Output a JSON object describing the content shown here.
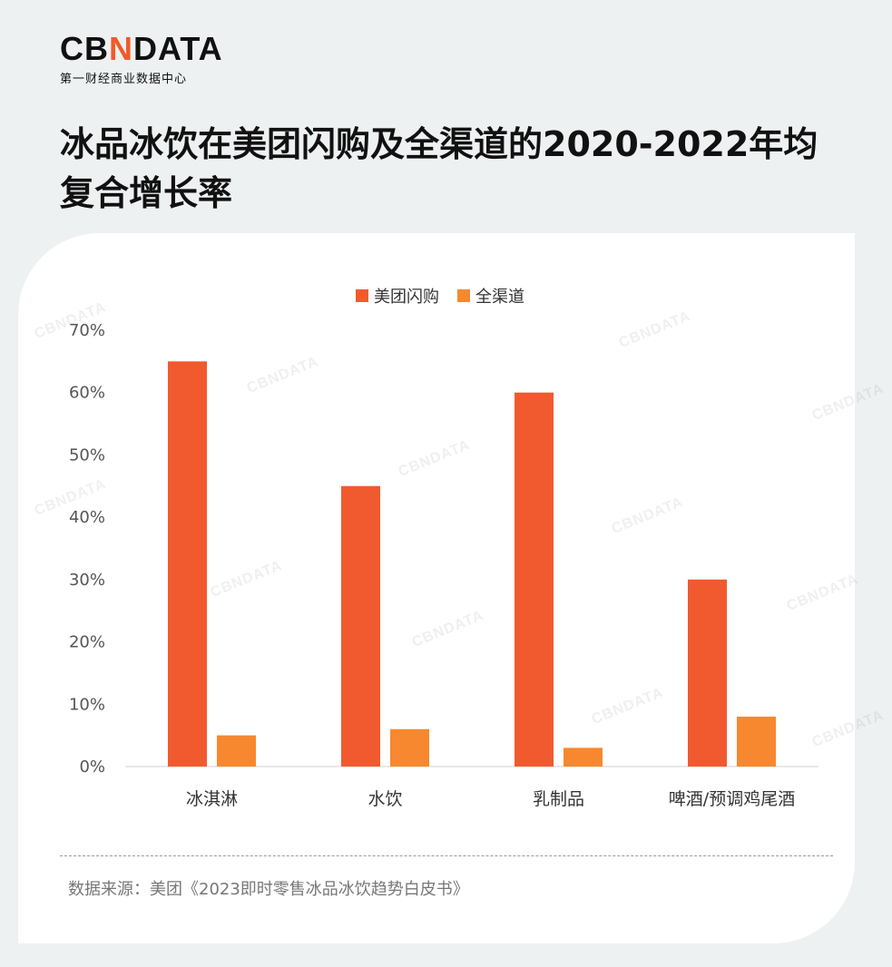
{
  "brand": {
    "logo_pre": "CB",
    "logo_accent": "N",
    "logo_post": "DATA",
    "subtitle": "第一财经商业数据中心",
    "accent_color": "#f15a2b"
  },
  "title": "冰品冰饮在美团闪购及全渠道的2020-2022年均复合增长率",
  "chart_data": {
    "type": "bar",
    "categories": [
      "冰淇淋",
      "水饮",
      "乳制品",
      "啤酒/预调鸡尾酒"
    ],
    "series": [
      {
        "name": "美团闪购",
        "values": [
          65,
          45,
          60,
          30
        ],
        "color": "#f15a2f"
      },
      {
        "name": "全渠道",
        "values": [
          5,
          6,
          3,
          8
        ],
        "color": "#f7882f"
      }
    ],
    "ylim": [
      0,
      70
    ],
    "yticks": [
      "0%",
      "10%",
      "20%",
      "30%",
      "40%",
      "50%",
      "60%",
      "70%"
    ],
    "unit": "%",
    "grid": false,
    "legend_position": "top-center"
  },
  "source": "数据来源：美团《2023即时零售冰品冰饮趋势白皮书》",
  "watermark": "CBNDATA"
}
